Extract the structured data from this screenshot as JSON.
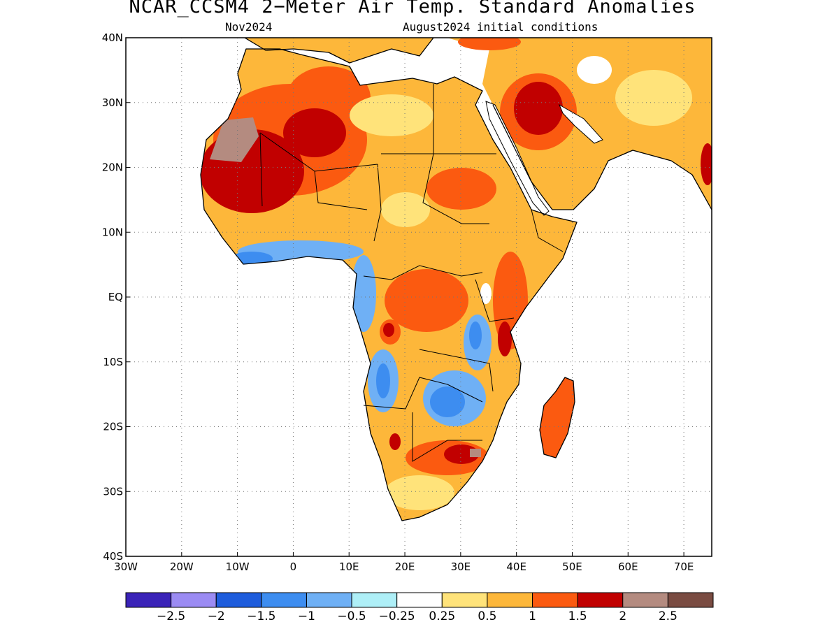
{
  "title": "NCAR_CCSM4 2−Meter Air Temp. Standard Anomalies",
  "subtitle_left": "Nov2024",
  "subtitle_right": "August2024 initial conditions",
  "map": {
    "lon_range": [
      -30,
      75
    ],
    "lat_range": [
      -40,
      40
    ],
    "x_ticks": [
      "30W",
      "20W",
      "10W",
      "0",
      "10E",
      "20E",
      "30E",
      "40E",
      "50E",
      "60E",
      "70E"
    ],
    "y_ticks": [
      "40N",
      "30N",
      "20N",
      "10N",
      "EQ",
      "10S",
      "20S",
      "30S",
      "40S"
    ],
    "grid": "dotted",
    "ocean_color": "#ffffff",
    "land_outline_color": "#000000"
  },
  "colorbar": {
    "colors": [
      "#3a23b8",
      "#9b8bf3",
      "#1e5cdc",
      "#3d8df0",
      "#6fb0f5",
      "#aeeff7",
      "#ffffff",
      "#ffe37a",
      "#fdb73a",
      "#fb5a10",
      "#c10000",
      "#b48b80",
      "#7a4c42"
    ],
    "labels": [
      "−2.5",
      "−2",
      "−1.5",
      "−1",
      "−0.5",
      "−0.25",
      "0.25",
      "0.5",
      "1",
      "1.5",
      "2",
      "2.5"
    ]
  }
}
